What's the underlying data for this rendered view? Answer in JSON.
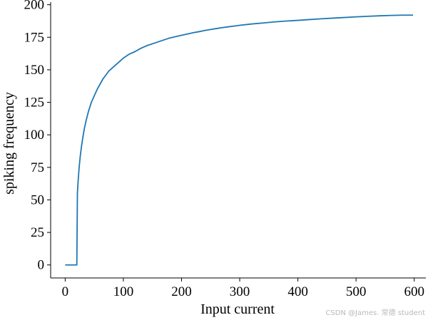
{
  "chart_data": {
    "type": "line",
    "xlabel": "Input current",
    "ylabel": "spiking frequency",
    "xlim": [
      -25,
      620
    ],
    "ylim": [
      -10,
      202
    ],
    "xticks": [
      0,
      100,
      200,
      300,
      400,
      500,
      600
    ],
    "yticks": [
      0,
      25,
      50,
      75,
      100,
      125,
      150,
      175,
      200
    ],
    "grid": false,
    "series": [
      {
        "color": "#1f77b4",
        "x": [
          0,
          20,
          21,
          22,
          24,
          26,
          28,
          30,
          33,
          36,
          40,
          45,
          50,
          55,
          60,
          65,
          70,
          75,
          80,
          85,
          90,
          95,
          100,
          110,
          120,
          130,
          140,
          150,
          160,
          170,
          180,
          190,
          200,
          210,
          220,
          230,
          240,
          250,
          260,
          270,
          280,
          290,
          300,
          320,
          340,
          360,
          380,
          400,
          420,
          440,
          460,
          480,
          500,
          520,
          540,
          560,
          580,
          598
        ],
        "values": [
          0,
          0,
          55,
          63,
          75,
          84,
          91,
          97,
          105,
          111,
          118,
          125,
          130,
          135,
          139,
          143,
          146,
          149,
          151,
          153,
          155,
          157,
          159,
          162,
          164,
          166.5,
          168.5,
          170,
          171.5,
          173,
          174.5,
          175.5,
          176.5,
          177.5,
          178.5,
          179.3,
          180.2,
          181,
          181.7,
          182.4,
          183,
          183.6,
          184.2,
          185.2,
          186,
          186.8,
          187.5,
          188,
          188.6,
          189.2,
          189.7,
          190.2,
          190.7,
          191.1,
          191.5,
          191.8,
          192,
          192
        ]
      }
    ]
  },
  "watermark": "CSDN @James. 常德 student"
}
